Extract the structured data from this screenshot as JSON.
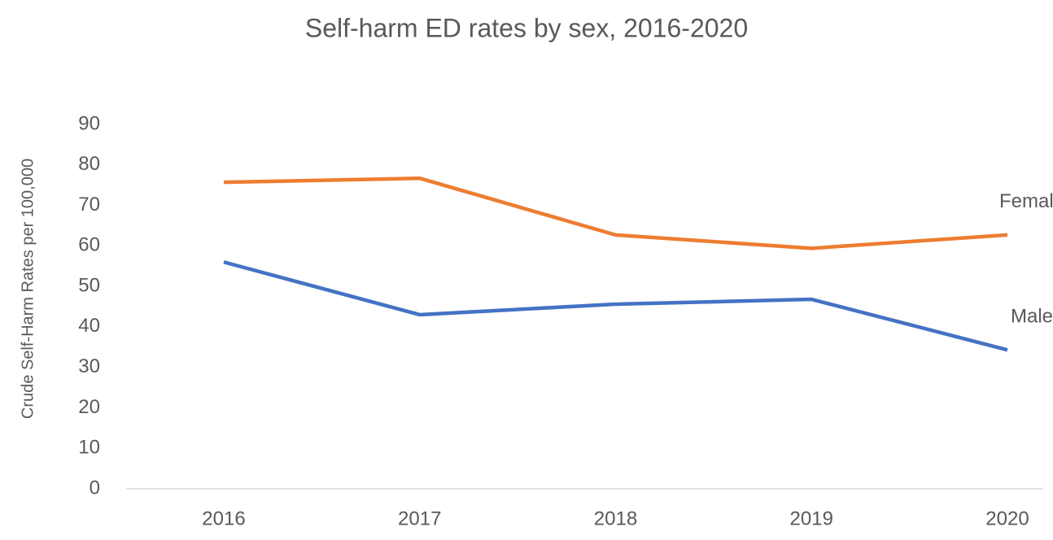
{
  "chart_data": {
    "type": "line",
    "title": "Self-harm ED rates by sex, 2016-2020",
    "y_label": "Crude Self-Harm Rates per 100,000",
    "categories": [
      "2016",
      "2017",
      "2018",
      "2019",
      "2020"
    ],
    "series": [
      {
        "name": "Female",
        "color": "#ed7d31",
        "values": [
          75.7,
          76.7,
          62.7,
          59.4,
          62.7
        ]
      },
      {
        "name": "Male",
        "color": "#4472c4",
        "values": [
          56,
          43,
          45.6,
          46.8,
          34.3
        ]
      }
    ],
    "ylim": [
      0,
      90
    ],
    "yticks": [
      0,
      10,
      20,
      30,
      40,
      50,
      60,
      70,
      80,
      90
    ],
    "grid": false
  }
}
